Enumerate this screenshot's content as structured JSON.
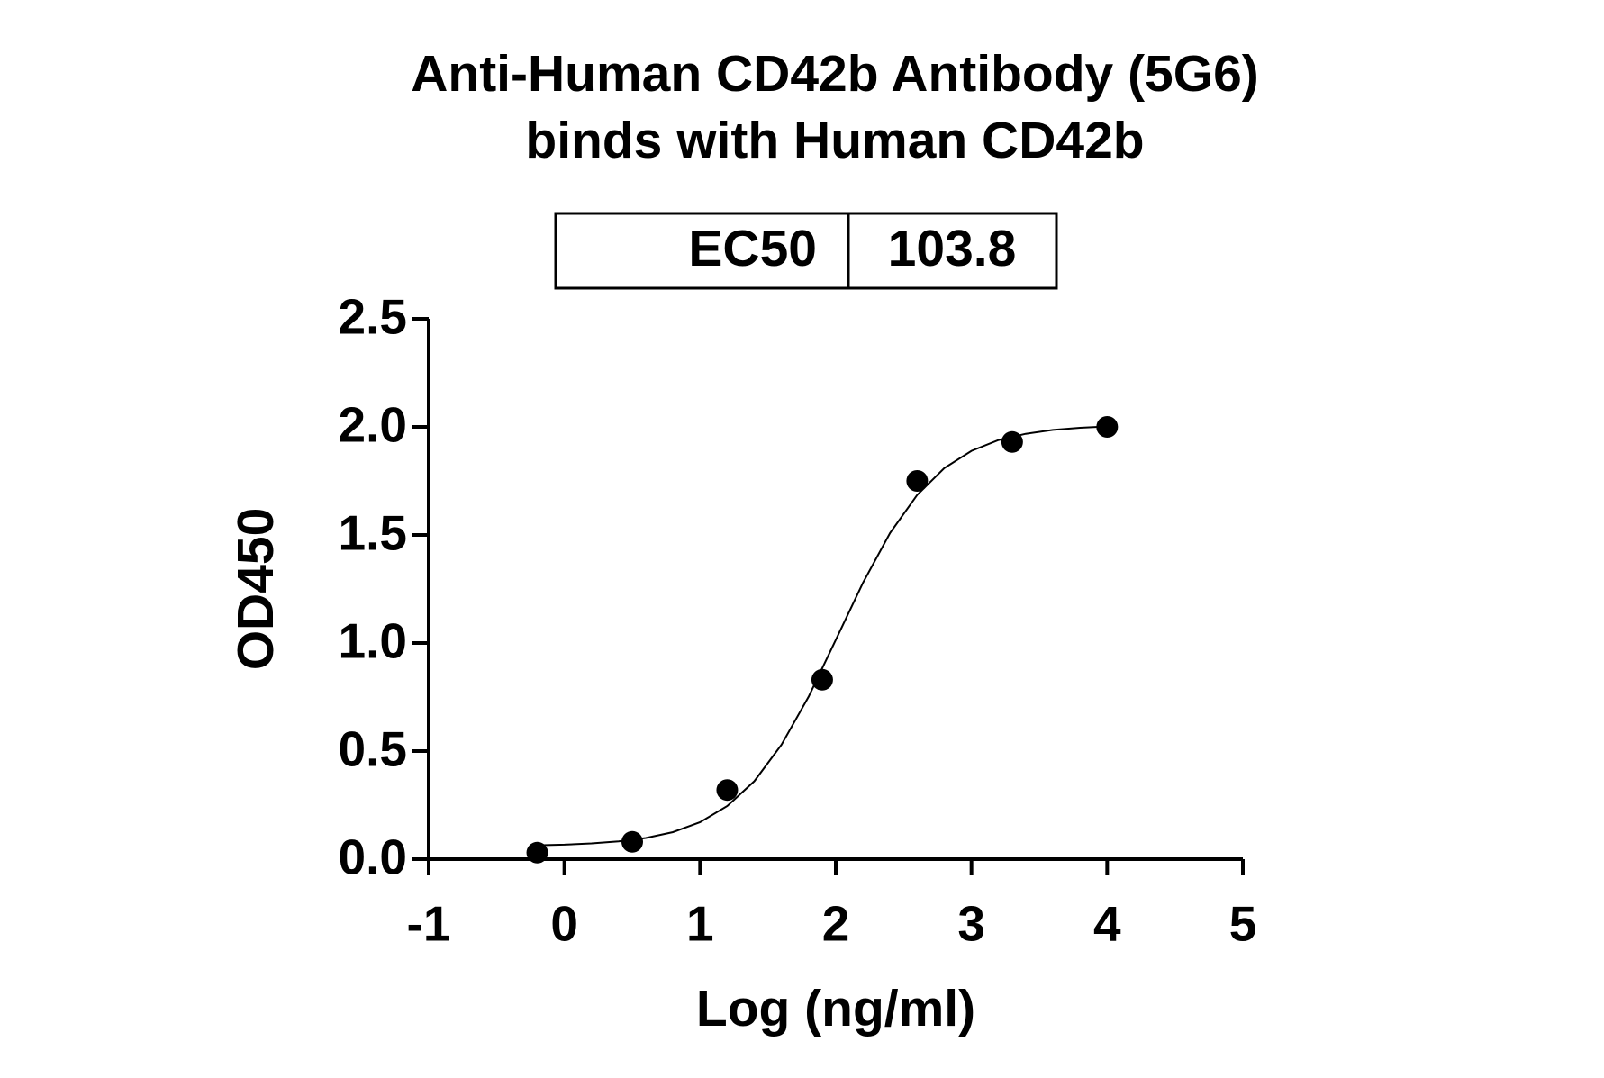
{
  "chart_data": {
    "type": "scatter",
    "title": [
      "Anti-Human CD42b Antibody (5G6)",
      "binds with Human CD42b"
    ],
    "table": {
      "label": "EC50",
      "value": 103.8
    },
    "x_label": "Log (ng/ml)",
    "y_label": "OD450",
    "x": [
      -0.2,
      0.5,
      1.2,
      1.9,
      2.6,
      3.3,
      4.0
    ],
    "values": [
      0.03,
      0.08,
      0.32,
      0.83,
      1.75,
      1.93,
      2.0
    ],
    "color": "#000000",
    "curve": {
      "x": [
        -0.2,
        0,
        0.2,
        0.4,
        0.6,
        0.8,
        1.0,
        1.2,
        1.4,
        1.6,
        1.8,
        2.0,
        2.2,
        2.4,
        2.6,
        2.8,
        3.0,
        3.2,
        3.4,
        3.6,
        3.8,
        4.0
      ],
      "values": [
        0.064,
        0.067,
        0.073,
        0.082,
        0.098,
        0.125,
        0.171,
        0.246,
        0.361,
        0.529,
        0.752,
        1.014,
        1.278,
        1.509,
        1.685,
        1.809,
        1.889,
        1.939,
        1.968,
        1.986,
        1.996,
        2.002
      ]
    },
    "xlim": [
      -1,
      5
    ],
    "xticks": [
      -1,
      0,
      1,
      2,
      3,
      4,
      5
    ],
    "ylim": [
      0,
      2.5
    ],
    "yticks": [
      {
        "value": 0,
        "label": "0.0"
      },
      0.5,
      {
        "value": 1,
        "label": "1.0"
      },
      1.5,
      {
        "value": 2,
        "label": "2.0"
      },
      2.5
    ]
  }
}
